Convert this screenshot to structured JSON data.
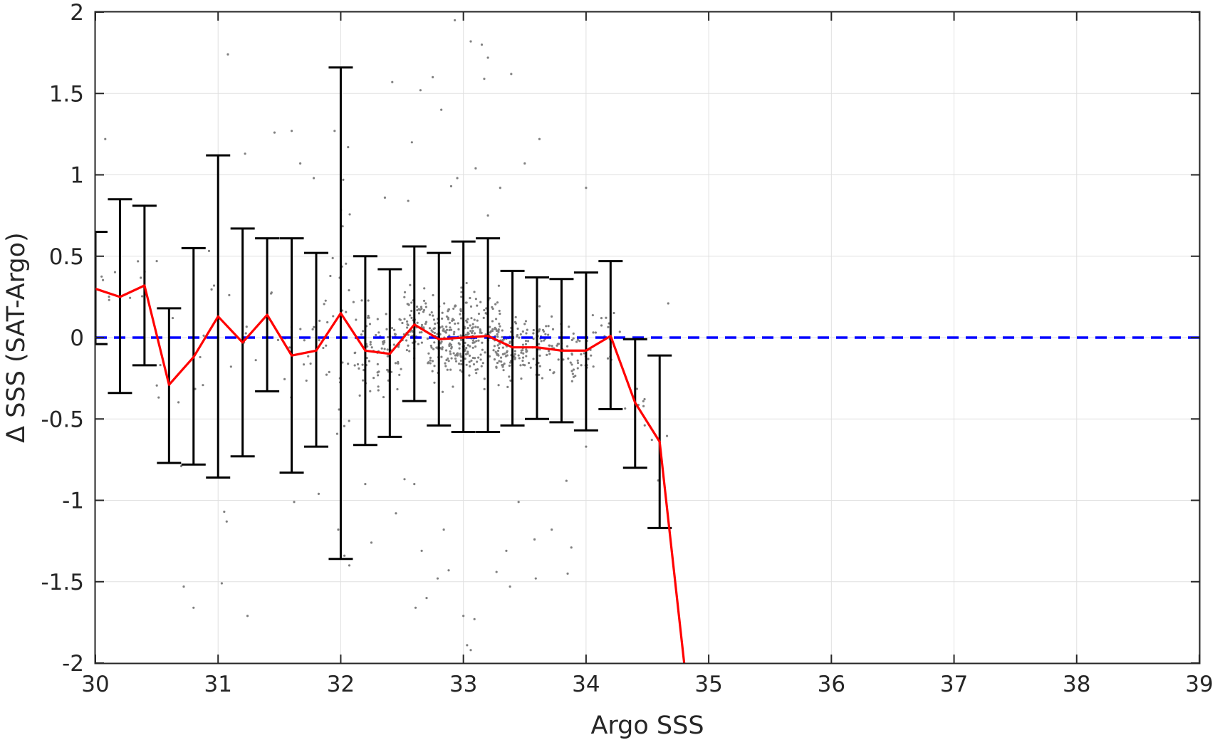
{
  "chart_data": {
    "type": "line",
    "title": "",
    "xlabel": "Argo SSS",
    "ylabel": "Δ SSS (SAT-Argo)",
    "xlim": [
      30,
      39
    ],
    "ylim": [
      -2,
      2
    ],
    "grid": true,
    "x_ticks": [
      "30",
      "31",
      "32",
      "33",
      "34",
      "35",
      "36",
      "37",
      "38",
      "39"
    ],
    "y_ticks": [
      "2",
      "1.5",
      "1",
      "0.5",
      "0",
      "-0.5",
      "-1",
      "-1.5",
      "-2"
    ],
    "reference_line": {
      "y": 0,
      "style": "dashed",
      "color": "#0000ff"
    },
    "colors": {
      "mean_line": "#ff0000",
      "error_bars": "#000000",
      "scatter": "#808080",
      "zero_line": "#0000ff",
      "grid": "#e0e0e0",
      "axes": "#262626"
    },
    "series": [
      {
        "kind": "line",
        "x": [
          30.0,
          30.2,
          30.4,
          30.6,
          30.8,
          31.0,
          31.2,
          31.4,
          31.6,
          31.8,
          32.0,
          32.2,
          32.4,
          32.6,
          32.8,
          33.0,
          33.2,
          33.4,
          33.6,
          33.8,
          34.0,
          34.2,
          34.4,
          34.6,
          34.8
        ],
        "values": [
          0.3,
          0.25,
          0.32,
          -0.29,
          -0.12,
          0.13,
          -0.03,
          0.14,
          -0.11,
          -0.08,
          0.15,
          -0.08,
          -0.1,
          0.08,
          -0.01,
          0.0,
          0.01,
          -0.06,
          -0.06,
          -0.08,
          -0.08,
          0.01,
          -0.4,
          -0.64,
          -2.0
        ]
      },
      {
        "kind": "errorbar",
        "x": [
          30.0,
          30.2,
          30.4,
          30.6,
          30.8,
          31.0,
          31.2,
          31.4,
          31.6,
          31.8,
          32.0,
          32.2,
          32.4,
          32.6,
          32.8,
          33.0,
          33.2,
          33.4,
          33.6,
          33.8,
          34.0,
          34.2,
          34.4,
          34.6
        ],
        "upper": [
          0.65,
          0.85,
          0.81,
          0.18,
          0.55,
          1.12,
          0.67,
          0.61,
          0.61,
          0.52,
          1.66,
          0.5,
          0.42,
          0.56,
          0.52,
          0.59,
          0.61,
          0.41,
          0.37,
          0.36,
          0.4,
          0.47,
          -0.01,
          -0.11
        ],
        "lower": [
          -0.04,
          -0.34,
          -0.17,
          -0.77,
          -0.78,
          -0.86,
          -0.73,
          -0.33,
          -0.83,
          -0.67,
          -1.36,
          -0.66,
          -0.61,
          -0.39,
          -0.54,
          -0.58,
          -0.58,
          -0.54,
          -0.5,
          -0.52,
          -0.57,
          -0.44,
          -0.8,
          -1.17
        ]
      },
      {
        "kind": "scatter",
        "points": [
          [
            30.7,
            -0.79
          ],
          [
            30.72,
            -1.53
          ],
          [
            30.8,
            -1.66
          ],
          [
            30.63,
            0.12
          ],
          [
            30.08,
            1.22
          ],
          [
            30.5,
            0.47
          ],
          [
            31.08,
            1.74
          ],
          [
            31.05,
            -1.07
          ],
          [
            31.07,
            -1.13
          ],
          [
            31.03,
            -1.51
          ],
          [
            31.22,
            1.13
          ],
          [
            31.24,
            -1.71
          ],
          [
            31.46,
            1.26
          ],
          [
            31.6,
            1.27
          ],
          [
            31.67,
            1.07
          ],
          [
            31.78,
            0.98
          ],
          [
            31.62,
            -1.01
          ],
          [
            31.82,
            -0.96
          ],
          [
            31.95,
            1.27
          ],
          [
            32.06,
            1.17
          ],
          [
            32.02,
            0.97
          ],
          [
            31.98,
            -1.18
          ],
          [
            32.03,
            -1.34
          ],
          [
            32.07,
            -1.4
          ],
          [
            32.42,
            1.57
          ],
          [
            32.58,
            1.2
          ],
          [
            32.65,
            1.52
          ],
          [
            32.75,
            1.6
          ],
          [
            32.82,
            1.4
          ],
          [
            32.66,
            -1.31
          ],
          [
            32.61,
            -1.66
          ],
          [
            32.7,
            -1.6
          ],
          [
            32.79,
            -1.48
          ],
          [
            32.84,
            -1.18
          ],
          [
            32.88,
            -1.43
          ],
          [
            32.93,
            1.95
          ],
          [
            33.06,
            1.82
          ],
          [
            33.15,
            1.8
          ],
          [
            33.17,
            1.59
          ],
          [
            33.2,
            1.72
          ],
          [
            33.39,
            1.62
          ],
          [
            33.09,
            -1.73
          ],
          [
            33.03,
            -1.89
          ],
          [
            33.06,
            -1.92
          ],
          [
            33.0,
            -1.71
          ],
          [
            33.27,
            -1.44
          ],
          [
            33.38,
            -1.53
          ],
          [
            33.59,
            -1.48
          ],
          [
            33.62,
            1.22
          ],
          [
            33.5,
            1.07
          ],
          [
            34.0,
            0.92
          ],
          [
            33.85,
            -1.45
          ],
          [
            33.88,
            -1.29
          ],
          [
            34.67,
            0.21
          ],
          [
            34.0,
            -0.67
          ],
          [
            32.55,
            0.84
          ],
          [
            32.36,
            0.86
          ],
          [
            32.9,
            0.93
          ],
          [
            32.95,
            0.98
          ],
          [
            33.1,
            1.04
          ],
          [
            33.3,
            0.92
          ],
          [
            33.2,
            0.75
          ],
          [
            32.6,
            -0.9
          ],
          [
            32.2,
            -0.9
          ],
          [
            32.45,
            -1.08
          ],
          [
            33.45,
            -1.01
          ],
          [
            33.58,
            -1.24
          ],
          [
            33.35,
            -1.31
          ],
          [
            32.25,
            -1.26
          ],
          [
            32.52,
            -0.87
          ],
          [
            33.72,
            -1.18
          ],
          [
            33.84,
            -0.88
          ]
        ]
      }
    ]
  }
}
